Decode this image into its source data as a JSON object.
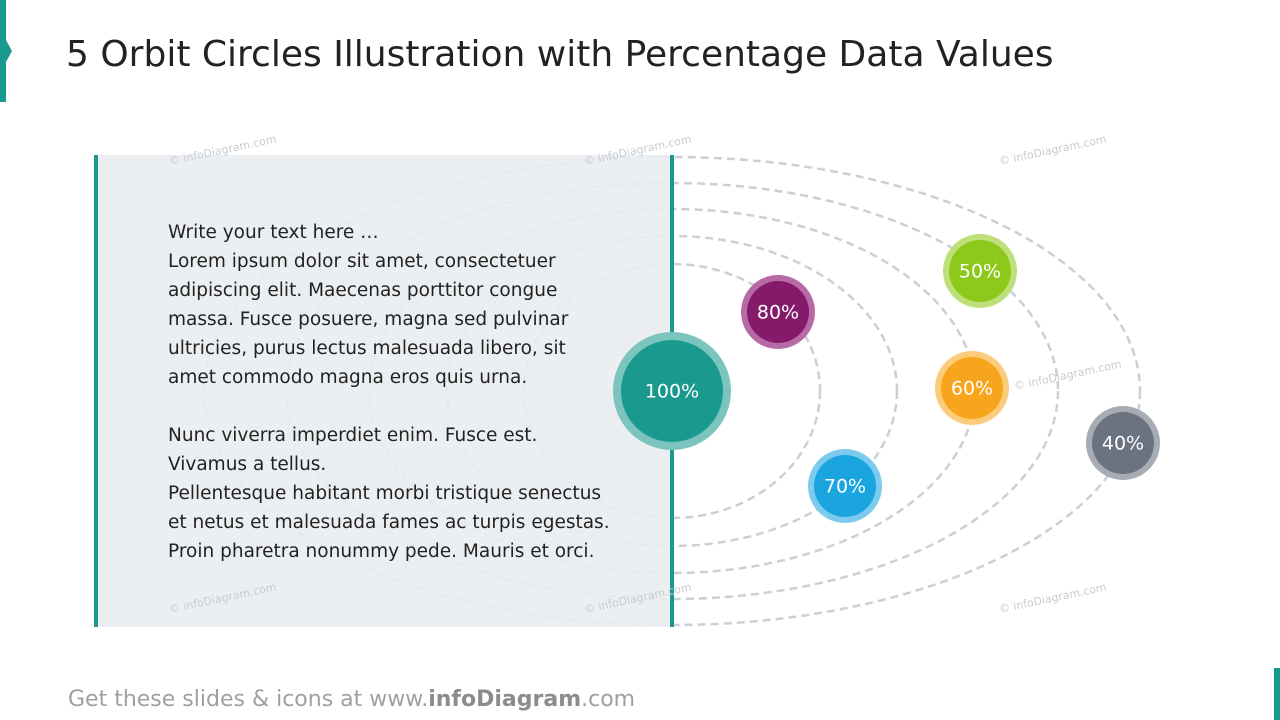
{
  "header": {
    "title": "5 Orbit Circles Illustration with Percentage Data Values"
  },
  "text_block": {
    "paragraphs": [
      [
        "Write your text here …",
        "Lorem ipsum dolor sit amet, consectetuer",
        "adipiscing elit. Maecenas porttitor congue",
        "massa. Fusce posuere, magna sed pulvinar",
        "ultricies, purus lectus malesuada libero, sit",
        "amet commodo magna eros quis urna."
      ],
      [
        "Nunc viverra imperdiet enim. Fusce est.",
        "Vivamus a tellus.",
        "Pellentesque habitant morbi tristique senectus",
        "et netus et malesuada fames ac turpis egestas.",
        "Proin pharetra nonummy pede. Mauris et orci."
      ]
    ]
  },
  "nodes": [
    {
      "label": "100%"
    },
    {
      "label": "80%"
    },
    {
      "label": "70%"
    },
    {
      "label": "60%"
    },
    {
      "label": "50%"
    },
    {
      "label": "40%"
    }
  ],
  "watermark": "© infoDiagram.com",
  "footer": {
    "prefix": "Get these slides & icons at www.",
    "brand": "infoDiagram",
    "suffix": ".com"
  }
}
